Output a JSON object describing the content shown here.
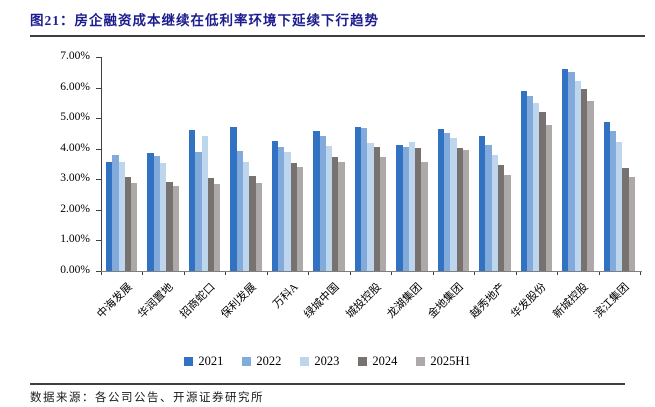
{
  "figure": {
    "title": "图21：房企融资成本继续在低利率环境下延续下行趋势",
    "source": "数据来源：各公司公告、开源证券研究所"
  },
  "chart_data": {
    "type": "bar",
    "title": "图21：房企融资成本继续在低利率环境下延续下行趋势",
    "xlabel": "",
    "ylabel": "",
    "ylim": [
      0,
      7
    ],
    "grid": false,
    "legend_position": "bottom",
    "y_tick_labels": [
      "7.00%",
      "6.00%",
      "5.00%",
      "4.00%",
      "3.00%",
      "2.00%",
      "1.00%",
      "0.00%"
    ],
    "categories": [
      "中海发展",
      "华润置地",
      "招商蛇口",
      "保利发展",
      "万科A",
      "绿城中国",
      "城投控股",
      "龙湖集团",
      "金地集团",
      "越秀地产",
      "华发股份",
      "新城控股",
      "滨江集团"
    ],
    "series": [
      {
        "name": "2021",
        "color": "#3272c2",
        "values": [
          3.55,
          3.85,
          4.6,
          4.7,
          4.25,
          4.59,
          4.72,
          4.13,
          4.65,
          4.43,
          5.9,
          6.6,
          4.89
        ]
      },
      {
        "name": "2022",
        "color": "#82aadb",
        "values": [
          3.78,
          3.75,
          3.89,
          3.92,
          4.06,
          4.4,
          4.67,
          4.07,
          4.52,
          4.13,
          5.73,
          6.51,
          4.59
        ]
      },
      {
        "name": "2023",
        "color": "#bdd6ee",
        "values": [
          3.55,
          3.52,
          4.4,
          3.56,
          3.9,
          4.1,
          4.18,
          4.21,
          4.36,
          3.78,
          5.48,
          6.22,
          4.21
        ]
      },
      {
        "name": "2024",
        "color": "#77716f",
        "values": [
          3.07,
          2.91,
          3.05,
          3.1,
          3.53,
          3.73,
          4.05,
          4.02,
          4.02,
          3.48,
          5.19,
          5.95,
          3.37
        ]
      },
      {
        "name": "2025H1",
        "color": "#ada9a8",
        "values": [
          2.89,
          2.79,
          2.84,
          2.89,
          3.4,
          3.58,
          3.72,
          3.58,
          3.96,
          3.13,
          4.78,
          5.57,
          3.07
        ]
      }
    ]
  },
  "style": {
    "title_color": "#1c1c8f",
    "axis_color": "#404040",
    "baseline_color": "#7f7f7f",
    "rule_color": "#3f3f3f"
  }
}
